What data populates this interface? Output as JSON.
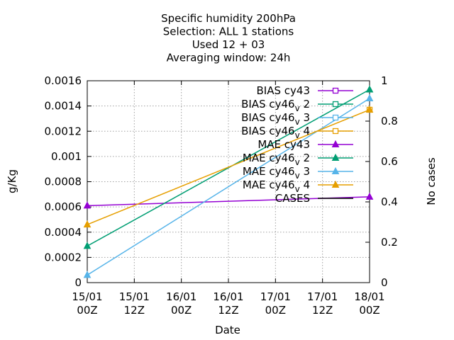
{
  "chart_data": {
    "type": "line",
    "title_lines": [
      "Specific humidity 200hPa",
      "Selection: ALL      1 stations",
      "Used  12 + 03",
      "Averaging window: 24h"
    ],
    "xlabel": "Date",
    "ylabel": "g/Kg",
    "y2label": "No cases",
    "x_ticks": [
      [
        "15/01",
        "00Z"
      ],
      [
        "15/01",
        "12Z"
      ],
      [
        "16/01",
        "00Z"
      ],
      [
        "16/01",
        "12Z"
      ],
      [
        "17/01",
        "00Z"
      ],
      [
        "17/01",
        "12Z"
      ],
      [
        "18/01",
        "00Z"
      ]
    ],
    "xlim_hours": [
      0,
      72
    ],
    "ylim": [
      0,
      0.0016
    ],
    "y_ticks": [
      "0",
      "0.0002",
      "0.0004",
      "0.0006",
      "0.0008",
      "0.001",
      "0.0012",
      "0.0014",
      "0.0016"
    ],
    "y2lim": [
      0,
      1
    ],
    "y2_ticks": [
      "0",
      "0.2",
      "0.4",
      "0.6",
      "0.8",
      "1"
    ],
    "grid": true,
    "legend_position": "top-right",
    "series": [
      {
        "name": "BIAS cy43",
        "color": "#9400d3",
        "marker": "open-square",
        "points": []
      },
      {
        "name": "BIAS cy46_v2",
        "color": "#009e73",
        "marker": "open-square",
        "points": []
      },
      {
        "name": "BIAS cy46_v3",
        "color": "#56b4e9",
        "marker": "open-square",
        "points": []
      },
      {
        "name": "BIAS cy46_v4",
        "color": "#e69f00",
        "marker": "open-square",
        "points": [
          [
            72,
            0.00137
          ]
        ]
      },
      {
        "name": "MAE cy43",
        "color": "#9400d3",
        "marker": "filled-triangle",
        "points": [
          [
            0,
            0.00061
          ],
          [
            72,
            0.00068
          ]
        ]
      },
      {
        "name": "MAE cy46_v2",
        "color": "#009e73",
        "marker": "filled-triangle",
        "points": [
          [
            0,
            0.00029
          ],
          [
            72,
            0.00153
          ]
        ]
      },
      {
        "name": "MAE cy46_v3",
        "color": "#56b4e9",
        "marker": "filled-triangle",
        "points": [
          [
            0,
            6e-05
          ],
          [
            72,
            0.00146
          ]
        ]
      },
      {
        "name": "MAE cy46_v4",
        "color": "#e69f00",
        "marker": "filled-triangle",
        "points": [
          [
            0,
            0.00046
          ],
          [
            72,
            0.00137
          ]
        ]
      },
      {
        "name": "CASES",
        "color": "#000000",
        "marker": "none",
        "points": []
      }
    ]
  }
}
